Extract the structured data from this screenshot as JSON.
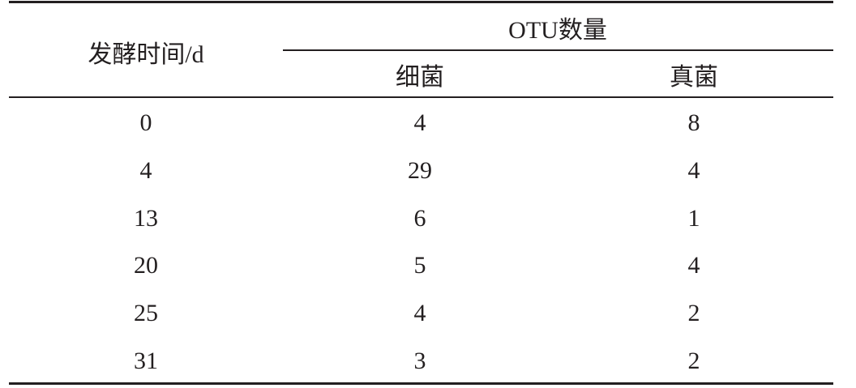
{
  "table": {
    "header": {
      "time_label": "发酵时间/d",
      "group_label": "OTU数量",
      "sub_columns": [
        "细菌",
        "真菌"
      ]
    },
    "rows": [
      {
        "time": "0",
        "bacteria": "4",
        "fungi": "8"
      },
      {
        "time": "4",
        "bacteria": "29",
        "fungi": "4"
      },
      {
        "time": "13",
        "bacteria": "6",
        "fungi": "1"
      },
      {
        "time": "20",
        "bacteria": "5",
        "fungi": "4"
      },
      {
        "time": "25",
        "bacteria": "4",
        "fungi": "2"
      },
      {
        "time": "31",
        "bacteria": "3",
        "fungi": "2"
      }
    ]
  }
}
